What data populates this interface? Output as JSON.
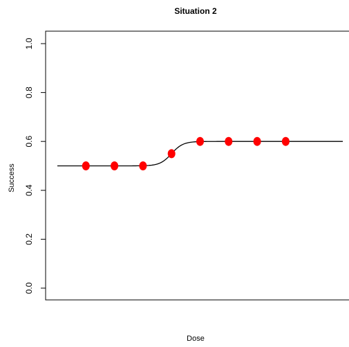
{
  "chart_data": {
    "type": "scatter",
    "title": "Situation 2",
    "xlabel": "Dose",
    "ylabel": "Success",
    "ylim": [
      0,
      1
    ],
    "yticks": [
      "0.0",
      "0.2",
      "0.4",
      "0.6",
      "0.8",
      "1.0"
    ],
    "ytick_values": [
      0,
      0.2,
      0.4,
      0.6,
      0.8,
      1.0
    ],
    "xlim": [
      0,
      10
    ],
    "show_xticks": false,
    "grid": false,
    "points": {
      "x": [
        1,
        2,
        3,
        4,
        5,
        6,
        7,
        8
      ],
      "y": [
        0.5,
        0.5,
        0.5,
        0.55,
        0.6,
        0.6,
        0.6,
        0.6
      ],
      "color": "#ff0000"
    },
    "curve": {
      "description_type": "logistic-step",
      "lower": 0.5,
      "upper": 0.6,
      "midpoint": 4,
      "steepness": 5,
      "x_range": [
        0,
        10
      ],
      "color": "#000000"
    }
  }
}
